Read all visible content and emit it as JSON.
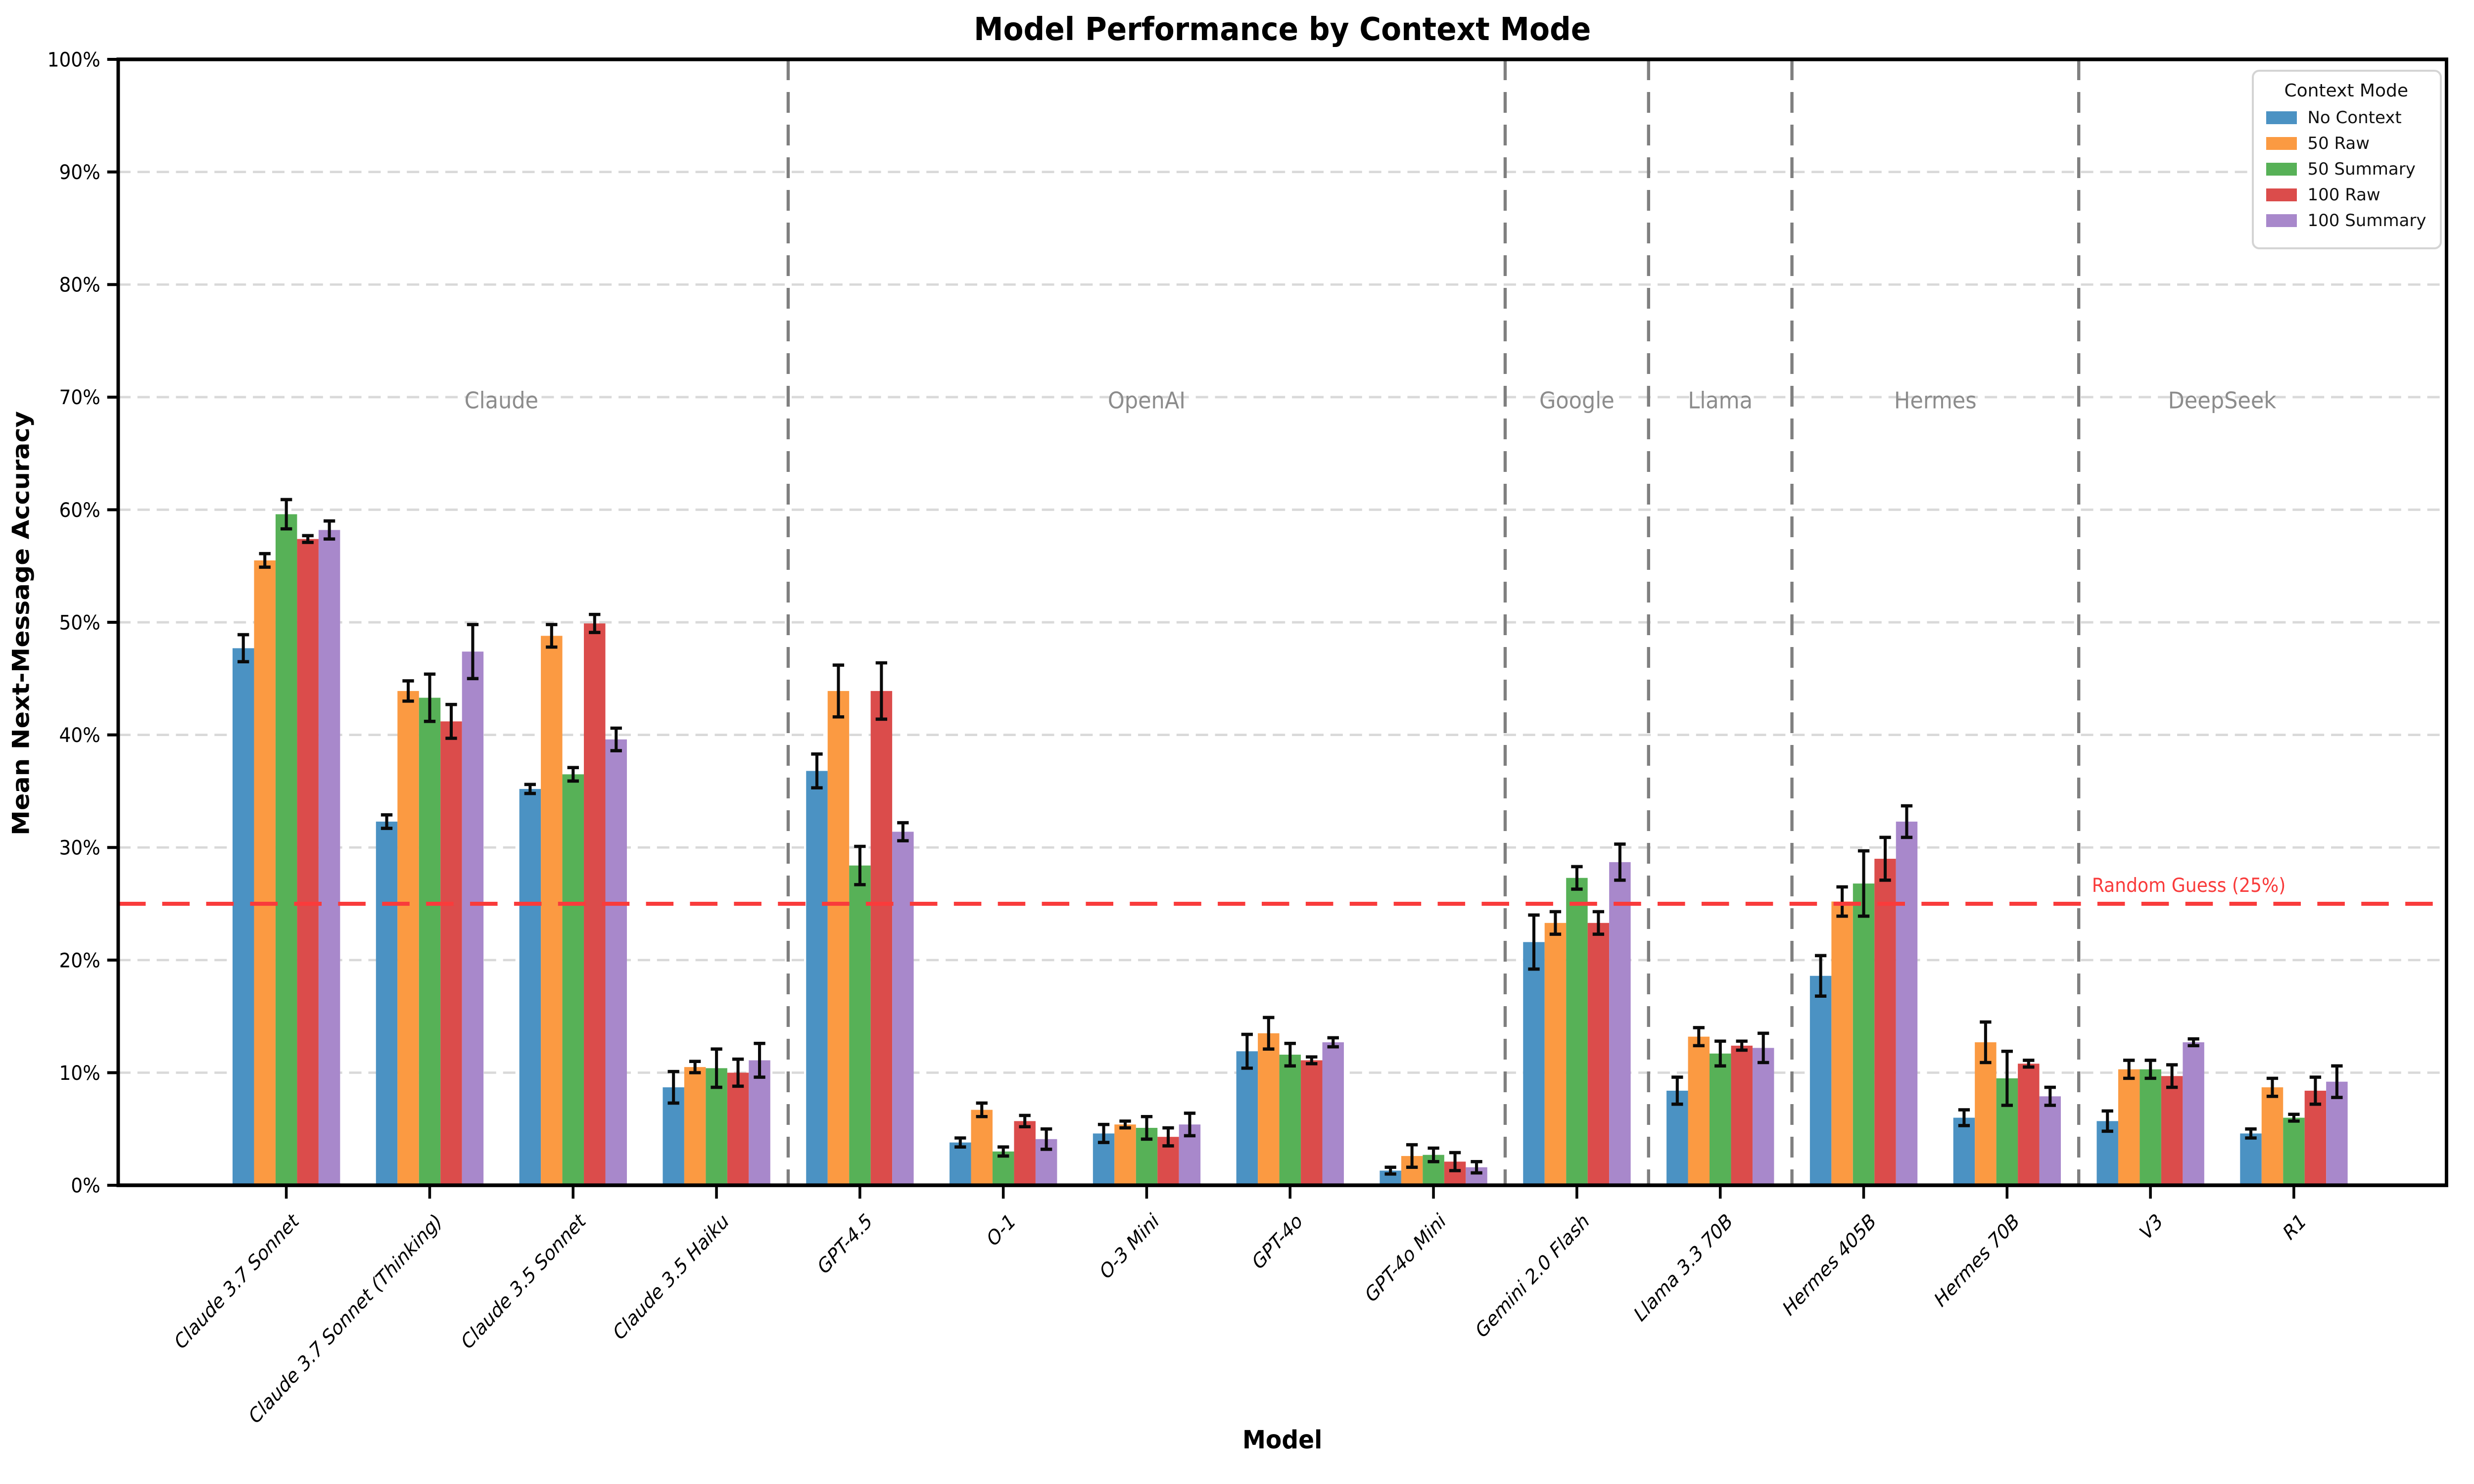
{
  "chart_data": {
    "type": "bar",
    "title": "Model Performance by Context Mode",
    "xlabel": "Model",
    "ylabel": "Mean Next-Message Accuracy",
    "ylim": [
      0,
      100
    ],
    "yticks": [
      0,
      10,
      20,
      30,
      40,
      50,
      60,
      70,
      80,
      90,
      100
    ],
    "ytick_suffix": "%",
    "grid": "horizontal-dashed",
    "categories": [
      "Claude 3.7 Sonnet",
      "Claude 3.7 Sonnet (Thinking)",
      "Claude 3.5 Sonnet",
      "Claude 3.5 Haiku",
      "GPT-4.5",
      "O-1",
      "O-3 Mini",
      "GPT-4o",
      "GPT-4o Mini",
      "Gemini 2.0 Flash",
      "Llama 3.3 70B",
      "Hermes 405B",
      "Hermes 70B",
      "V3",
      "R1"
    ],
    "model_groups": [
      {
        "label": "Claude",
        "start": 0,
        "end": 3
      },
      {
        "label": "OpenAI",
        "start": 4,
        "end": 8
      },
      {
        "label": "Google",
        "start": 9,
        "end": 9
      },
      {
        "label": "Llama",
        "start": 10,
        "end": 10
      },
      {
        "label": "Hermes",
        "start": 11,
        "end": 12
      },
      {
        "label": "DeepSeek",
        "start": 13,
        "end": 14
      }
    ],
    "separators_after_category": [
      3,
      8,
      9,
      10,
      12
    ],
    "group_label_color": "#8c8c8c",
    "group_label_accuracy_height": 69,
    "series": [
      {
        "name": "No Context",
        "color": "#4b92c3",
        "values": [
          47.7,
          32.3,
          35.2,
          8.7,
          36.8,
          3.8,
          4.6,
          11.9,
          1.3,
          21.6,
          8.4,
          18.6,
          6.0,
          5.7,
          4.6
        ],
        "errors": [
          1.2,
          0.6,
          0.4,
          1.4,
          1.5,
          0.4,
          0.8,
          1.5,
          0.3,
          2.4,
          1.2,
          1.8,
          0.7,
          0.9,
          0.4
        ]
      },
      {
        "name": "50 Raw",
        "color": "#fb9a42",
        "values": [
          55.5,
          43.9,
          48.8,
          10.5,
          43.9,
          6.7,
          5.4,
          13.5,
          2.6,
          23.3,
          13.2,
          25.2,
          12.7,
          10.3,
          8.7
        ],
        "errors": [
          0.6,
          0.9,
          1.0,
          0.5,
          2.3,
          0.6,
          0.3,
          1.4,
          1.0,
          1.0,
          0.8,
          1.3,
          1.8,
          0.8,
          0.8
        ]
      },
      {
        "name": "50 Summary",
        "color": "#57b157",
        "values": [
          59.6,
          43.3,
          36.5,
          10.4,
          28.4,
          3.0,
          5.1,
          11.6,
          2.7,
          27.3,
          11.7,
          26.8,
          9.5,
          10.3,
          6.0
        ],
        "errors": [
          1.3,
          2.1,
          0.6,
          1.7,
          1.7,
          0.4,
          1.0,
          1.0,
          0.6,
          1.0,
          1.1,
          2.9,
          2.4,
          0.8,
          0.3
        ]
      },
      {
        "name": "100 Raw",
        "color": "#db4c4b",
        "values": [
          57.4,
          41.2,
          49.9,
          10.0,
          43.9,
          5.7,
          4.3,
          11.1,
          2.1,
          23.3,
          12.4,
          29.0,
          10.8,
          9.7,
          8.4
        ],
        "errors": [
          0.3,
          1.5,
          0.8,
          1.2,
          2.5,
          0.5,
          0.8,
          0.3,
          0.8,
          1.0,
          0.4,
          1.9,
          0.3,
          1.0,
          1.2
        ]
      },
      {
        "name": "100 Summary",
        "color": "#a888cb",
        "values": [
          58.2,
          47.4,
          39.6,
          11.1,
          31.4,
          4.1,
          5.4,
          12.7,
          1.6,
          28.7,
          12.2,
          32.3,
          7.9,
          12.7,
          9.2
        ],
        "errors": [
          0.8,
          2.4,
          1.0,
          1.5,
          0.8,
          0.9,
          1.0,
          0.4,
          0.5,
          1.6,
          1.3,
          1.4,
          0.8,
          0.3,
          1.4
        ]
      }
    ],
    "reference_line": {
      "value": 25,
      "label": "Random Guess (25%)",
      "color": "#f93b3b"
    },
    "legend": {
      "title": "Context Mode",
      "position": "top-right"
    },
    "style": {
      "gridline_color": "#d9d9d9",
      "separator_color": "#7f7f7f",
      "error_bar_color": "#0a0a0a",
      "axis_color": "#000000",
      "background": "#ffffff"
    }
  }
}
